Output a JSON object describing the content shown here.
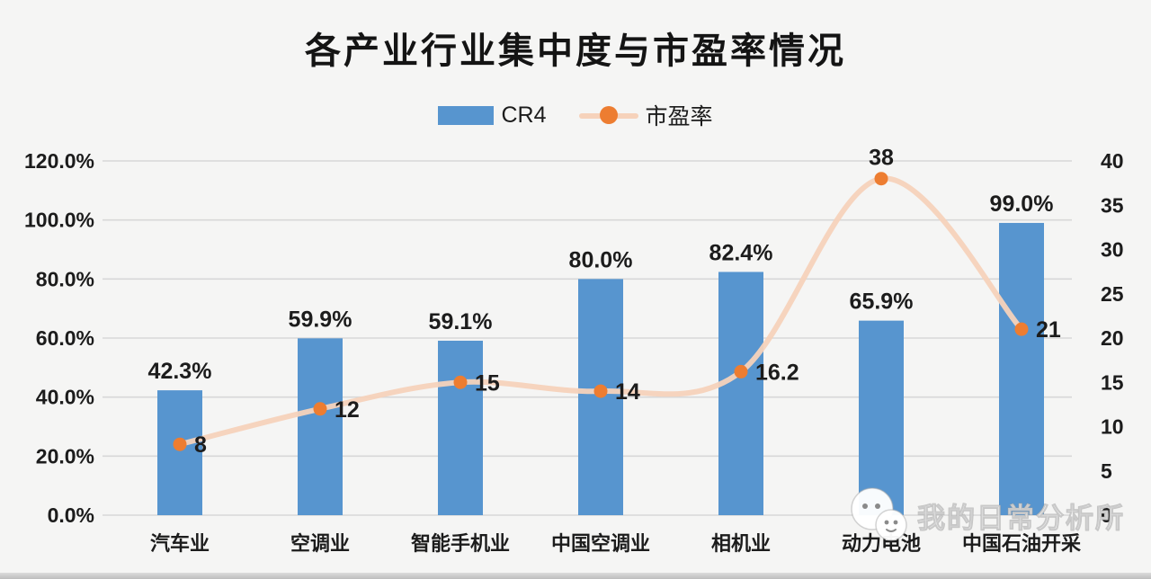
{
  "watermark": {
    "text": "我的日常分析所",
    "logo": "smiley-chat-faces-icon"
  },
  "chart_data": {
    "type": "bar",
    "subtype": "combo-bar-line",
    "title": "各产业行业集中度与市盈率情况",
    "grid": true,
    "legend_position": "top-center",
    "categories": [
      "汽车业",
      "空调业",
      "智能手机业",
      "中国空调业",
      "相机业",
      "动力电池",
      "中国石油开采"
    ],
    "left_axis": {
      "min": 0,
      "max": 120,
      "tick_values": [
        0,
        20,
        40,
        60,
        80,
        100,
        120
      ],
      "tick_labels": [
        "0.0%",
        "20.0%",
        "40.0%",
        "60.0%",
        "80.0%",
        "100.0%",
        "120.0%"
      ]
    },
    "right_axis": {
      "min": 0,
      "max": 40,
      "tick_values": [
        0,
        5,
        10,
        15,
        20,
        25,
        30,
        35,
        40
      ],
      "tick_labels": [
        "0",
        "5",
        "10",
        "15",
        "20",
        "25",
        "30",
        "35",
        "40"
      ]
    },
    "series": [
      {
        "name": "CR4",
        "type": "bar",
        "axis": "left",
        "color": "#5795cf",
        "values": [
          42.3,
          59.9,
          59.1,
          80.0,
          82.4,
          65.9,
          99.0
        ],
        "labels": [
          "42.3%",
          "59.9%",
          "59.1%",
          "80.0%",
          "82.4%",
          "65.9%",
          "99.0%"
        ]
      },
      {
        "name": "市盈率",
        "type": "line",
        "axis": "right",
        "line_color": "#f6d2bb",
        "marker_color": "#ed7d31",
        "values": [
          8,
          12,
          15,
          14,
          16.2,
          38,
          21
        ],
        "labels": [
          "8",
          "12",
          "15",
          "14",
          "16.2",
          "38",
          "21"
        ],
        "label_side": [
          "right",
          "right",
          "right",
          "right",
          "right",
          "top",
          "right"
        ]
      }
    ],
    "colors": {
      "background": "#f5f5f4",
      "gridline": "#d8d8d8",
      "text": "#1c1c1c"
    }
  }
}
